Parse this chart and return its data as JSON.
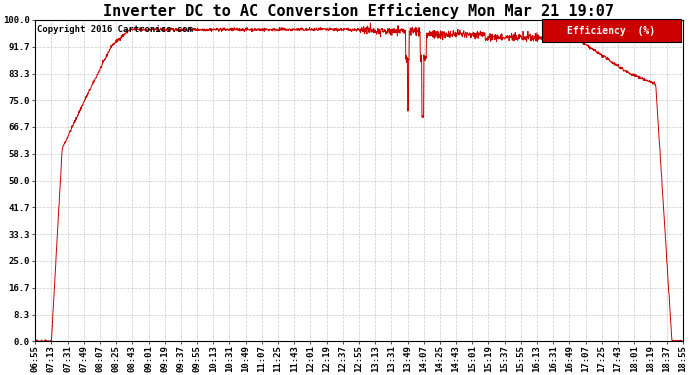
{
  "title": "Inverter DC to AC Conversion Efficiency Mon Mar 21 19:07",
  "copyright": "Copyright 2016 Cartronics.com",
  "legend_label": "Efficiency  (%)",
  "legend_bg": "#cc0000",
  "legend_text_color": "#ffffff",
  "line_color": "#cc0000",
  "bg_color": "#ffffff",
  "plot_bg_color": "#ffffff",
  "grid_color": "#bbbbbb",
  "ylim": [
    0.0,
    100.0
  ],
  "yticks": [
    0.0,
    8.3,
    16.7,
    25.0,
    33.3,
    41.7,
    50.0,
    58.3,
    66.7,
    75.0,
    83.3,
    91.7,
    100.0
  ],
  "title_fontsize": 11,
  "copyright_fontsize": 6.5,
  "tick_fontsize": 6.5,
  "legend_fontsize": 7,
  "x_tick_labels": [
    "06:55",
    "07:13",
    "07:31",
    "07:49",
    "08:07",
    "08:25",
    "08:43",
    "09:01",
    "09:19",
    "09:37",
    "09:55",
    "10:13",
    "10:31",
    "10:49",
    "11:07",
    "11:25",
    "11:43",
    "12:01",
    "12:19",
    "12:37",
    "12:55",
    "13:13",
    "13:31",
    "13:49",
    "14:07",
    "14:25",
    "14:43",
    "15:01",
    "15:19",
    "15:37",
    "15:55",
    "16:13",
    "16:31",
    "16:49",
    "17:07",
    "17:25",
    "17:43",
    "18:01",
    "18:19",
    "18:37",
    "18:55"
  ]
}
